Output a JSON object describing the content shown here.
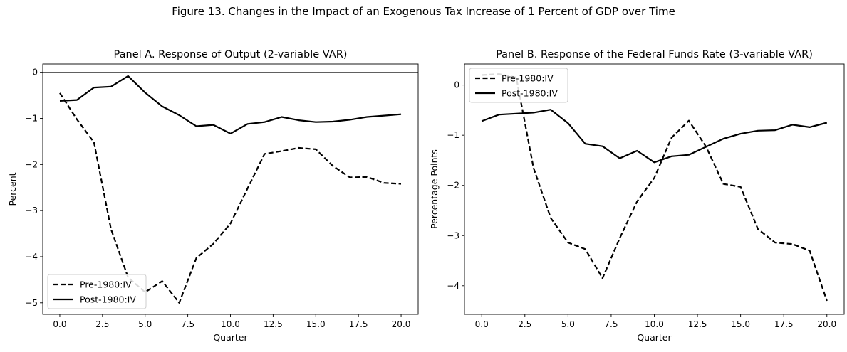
{
  "figure_title": "Figure 13. Changes in the Impact of an Exogenous Tax Increase of 1 Percent of GDP over Time",
  "chart_data": [
    {
      "type": "line",
      "title": "Panel A. Response of Output (2-variable VAR)",
      "xlabel": "Quarter",
      "ylabel": "Percent",
      "xlim": [
        -1,
        21
      ],
      "ylim": [
        -5.25,
        0.18
      ],
      "xticks": [
        0,
        2.5,
        5,
        7.5,
        10,
        12.5,
        15,
        17.5,
        20
      ],
      "xtick_labels": [
        "0.0",
        "2.5",
        "5.0",
        "7.5",
        "10.0",
        "12.5",
        "15.0",
        "17.5",
        "20.0"
      ],
      "yticks": [
        0,
        -1,
        -2,
        -3,
        -4,
        -5
      ],
      "ytick_labels": [
        "0",
        "−1",
        "−2",
        "−3",
        "−4",
        "−5"
      ],
      "zero_line": true,
      "legend_position": "lower left",
      "x": [
        0,
        1,
        2,
        3,
        4,
        5,
        6,
        7,
        8,
        9,
        10,
        11,
        12,
        13,
        14,
        15,
        16,
        17,
        18,
        19,
        20
      ],
      "series": [
        {
          "name": "Pre-1980:IV",
          "style": "dashed",
          "values": [
            -0.45,
            -1.02,
            -1.52,
            -3.4,
            -4.45,
            -4.77,
            -4.53,
            -5.0,
            -4.03,
            -3.72,
            -3.28,
            -2.52,
            -1.77,
            -1.71,
            -1.64,
            -1.67,
            -2.03,
            -2.28,
            -2.27,
            -2.4,
            -2.42
          ]
        },
        {
          "name": "Post-1980:IV",
          "style": "solid",
          "values": [
            -0.62,
            -0.6,
            -0.33,
            -0.31,
            -0.08,
            -0.44,
            -0.74,
            -0.93,
            -1.17,
            -1.14,
            -1.33,
            -1.12,
            -1.08,
            -0.97,
            -1.04,
            -1.08,
            -1.07,
            -1.03,
            -0.97,
            -0.94,
            -0.91
          ]
        }
      ]
    },
    {
      "type": "line",
      "title": "Panel B. Response of the Federal Funds Rate (3-variable VAR)",
      "xlabel": "Quarter",
      "ylabel": "Percentage Points",
      "xlim": [
        -1,
        21
      ],
      "ylim": [
        -4.57,
        0.42
      ],
      "xticks": [
        0,
        2.5,
        5,
        7.5,
        10,
        12.5,
        15,
        17.5,
        20
      ],
      "xtick_labels": [
        "0.0",
        "2.5",
        "5.0",
        "7.5",
        "10.0",
        "12.5",
        "15.0",
        "17.5",
        "20.0"
      ],
      "yticks": [
        0,
        -1,
        -2,
        -3,
        -4
      ],
      "ytick_labels": [
        "0",
        "−1",
        "−2",
        "−3",
        "−4"
      ],
      "zero_line": true,
      "legend_position": "upper left",
      "x": [
        0,
        1,
        2,
        3,
        4,
        5,
        6,
        7,
        8,
        9,
        10,
        11,
        12,
        13,
        14,
        15,
        16,
        17,
        18,
        19,
        20
      ],
      "series": [
        {
          "name": "Pre-1980:IV",
          "style": "dashed",
          "values": [
            0.2,
            0.22,
            0.15,
            -1.65,
            -2.65,
            -3.14,
            -3.27,
            -3.85,
            -3.05,
            -2.32,
            -1.85,
            -1.05,
            -0.71,
            -1.23,
            -1.97,
            -2.03,
            -2.87,
            -3.14,
            -3.17,
            -3.3,
            -4.3
          ]
        },
        {
          "name": "Post-1980:IV",
          "style": "solid",
          "values": [
            -0.72,
            -0.59,
            -0.57,
            -0.55,
            -0.49,
            -0.76,
            -1.17,
            -1.22,
            -1.46,
            -1.31,
            -1.54,
            -1.42,
            -1.39,
            -1.23,
            -1.07,
            -0.97,
            -0.91,
            -0.9,
            -0.79,
            -0.84,
            -0.75
          ]
        }
      ]
    }
  ]
}
